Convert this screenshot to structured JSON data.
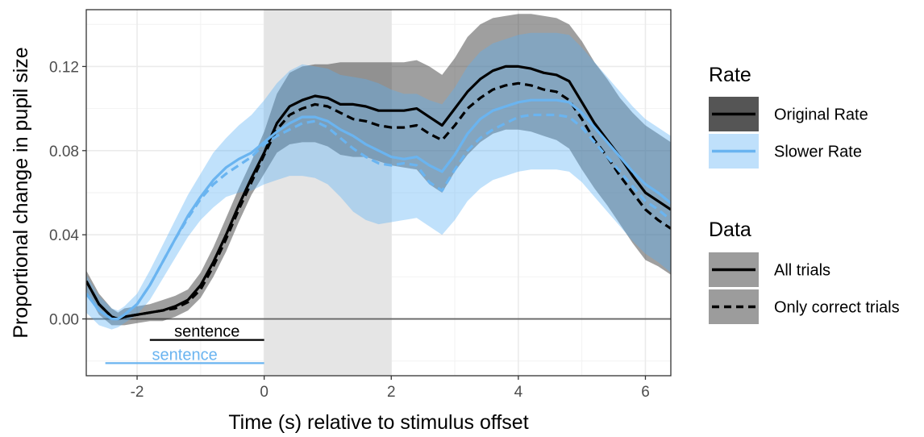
{
  "chart_data": {
    "type": "line",
    "xlabel": "Time (s) relative to stimulus offset",
    "ylabel": "Proportional change in pupil size",
    "xlim": [
      -2.8,
      6.4
    ],
    "ylim": [
      -0.027,
      0.147
    ],
    "x_ticks": [
      -2,
      0,
      2,
      4,
      6
    ],
    "x_tick_labels": [
      "-2",
      "0",
      "2",
      "4",
      "6"
    ],
    "y_ticks": [
      0.0,
      0.04,
      0.08,
      0.12
    ],
    "y_tick_labels": [
      "0.00",
      "0.04",
      "0.08",
      "0.12"
    ],
    "grid": true,
    "shaded_region": {
      "x_start": 0,
      "x_end": 2,
      "color": "#e5e5e5"
    },
    "reference_line": {
      "y": 0,
      "color": "#666666"
    },
    "annotations": [
      {
        "text": "sentence",
        "x_start": -1.8,
        "x_end": 0,
        "y": -0.01,
        "color": "#000000"
      },
      {
        "text": "sentence",
        "x_start": -2.5,
        "x_end": 0,
        "y": -0.021,
        "color": "#6ab4f0"
      }
    ],
    "legend": {
      "position": "right",
      "groups": [
        {
          "title": "Rate",
          "entries": [
            {
              "label": "Original Rate",
              "line_color": "#000000",
              "fill_color": "#555555"
            },
            {
              "label": "Slower Rate",
              "line_color": "#6ab4f0",
              "fill_color": "#bfe0fb"
            }
          ]
        },
        {
          "title": "Data",
          "entries": [
            {
              "label": "All trials",
              "dash": "solid"
            },
            {
              "label": "Only correct trials",
              "dash": "dashed"
            }
          ]
        }
      ]
    },
    "x": [
      -2.8,
      -2.6,
      -2.4,
      -2.3,
      -2.2,
      -2.0,
      -1.8,
      -1.6,
      -1.4,
      -1.2,
      -1.0,
      -0.8,
      -0.6,
      -0.4,
      -0.2,
      0.0,
      0.2,
      0.4,
      0.6,
      0.8,
      1.0,
      1.2,
      1.4,
      1.6,
      1.8,
      2.0,
      2.2,
      2.4,
      2.6,
      2.8,
      3.0,
      3.2,
      3.4,
      3.6,
      3.8,
      4.0,
      4.2,
      4.4,
      4.6,
      4.8,
      5.0,
      5.2,
      5.4,
      5.6,
      5.8,
      6.0,
      6.2,
      6.4
    ],
    "series": [
      {
        "name": "Original Rate",
        "data": "All trials",
        "color": "#000000",
        "dash": "solid",
        "values": [
          0.018,
          0.007,
          0.001,
          0.0,
          0.001,
          0.002,
          0.003,
          0.004,
          0.006,
          0.009,
          0.016,
          0.027,
          0.04,
          0.054,
          0.067,
          0.079,
          0.093,
          0.101,
          0.104,
          0.106,
          0.105,
          0.102,
          0.102,
          0.101,
          0.099,
          0.099,
          0.099,
          0.1,
          0.096,
          0.092,
          0.1,
          0.108,
          0.114,
          0.118,
          0.12,
          0.12,
          0.119,
          0.117,
          0.116,
          0.113,
          0.103,
          0.093,
          0.085,
          0.077,
          0.068,
          0.06,
          0.056,
          0.052
        ],
        "lower": [
          0.013,
          0.002,
          -0.003,
          -0.003,
          -0.003,
          -0.002,
          -0.001,
          -0.001,
          0.001,
          0.004,
          0.01,
          0.02,
          0.032,
          0.046,
          0.059,
          0.069,
          0.079,
          0.083,
          0.084,
          0.084,
          0.082,
          0.078,
          0.077,
          0.077,
          0.075,
          0.073,
          0.072,
          0.071,
          0.064,
          0.06,
          0.07,
          0.078,
          0.084,
          0.088,
          0.09,
          0.09,
          0.089,
          0.087,
          0.085,
          0.081,
          0.071,
          0.062,
          0.054,
          0.045,
          0.036,
          0.028,
          0.025,
          0.021
        ],
        "upper": [
          0.023,
          0.012,
          0.005,
          0.003,
          0.005,
          0.006,
          0.007,
          0.009,
          0.011,
          0.014,
          0.022,
          0.034,
          0.048,
          0.062,
          0.075,
          0.089,
          0.107,
          0.117,
          0.12,
          0.121,
          0.121,
          0.122,
          0.122,
          0.122,
          0.122,
          0.122,
          0.122,
          0.123,
          0.12,
          0.116,
          0.124,
          0.134,
          0.14,
          0.143,
          0.144,
          0.145,
          0.145,
          0.144,
          0.143,
          0.14,
          0.132,
          0.122,
          0.114,
          0.105,
          0.098,
          0.092,
          0.088,
          0.084
        ]
      },
      {
        "name": "Original Rate",
        "data": "Only correct trials",
        "color": "#000000",
        "dash": "dashed",
        "values": [
          0.018,
          0.007,
          0.001,
          0.0,
          0.001,
          0.002,
          0.003,
          0.004,
          0.005,
          0.008,
          0.014,
          0.025,
          0.038,
          0.052,
          0.065,
          0.078,
          0.09,
          0.097,
          0.1,
          0.102,
          0.101,
          0.098,
          0.095,
          0.094,
          0.092,
          0.091,
          0.091,
          0.092,
          0.088,
          0.085,
          0.092,
          0.1,
          0.105,
          0.109,
          0.111,
          0.112,
          0.111,
          0.109,
          0.108,
          0.104,
          0.095,
          0.085,
          0.077,
          0.068,
          0.06,
          0.052,
          0.047,
          0.043
        ]
      },
      {
        "name": "Slower Rate",
        "data": "All trials",
        "color": "#6ab4f0",
        "dash": "solid",
        "values": [
          0.012,
          0.004,
          0.0,
          0.0,
          0.002,
          0.007,
          0.016,
          0.027,
          0.038,
          0.049,
          0.058,
          0.066,
          0.072,
          0.076,
          0.079,
          0.084,
          0.089,
          0.093,
          0.096,
          0.096,
          0.094,
          0.09,
          0.087,
          0.083,
          0.08,
          0.077,
          0.076,
          0.077,
          0.073,
          0.07,
          0.078,
          0.088,
          0.095,
          0.099,
          0.101,
          0.103,
          0.104,
          0.104,
          0.104,
          0.103,
          0.098,
          0.091,
          0.084,
          0.077,
          0.07,
          0.064,
          0.06,
          0.055
        ],
        "lower": [
          0.003,
          -0.003,
          -0.005,
          -0.004,
          -0.002,
          0.002,
          0.009,
          0.019,
          0.029,
          0.039,
          0.047,
          0.053,
          0.058,
          0.06,
          0.061,
          0.064,
          0.066,
          0.068,
          0.068,
          0.067,
          0.064,
          0.058,
          0.051,
          0.047,
          0.045,
          0.046,
          0.047,
          0.048,
          0.044,
          0.04,
          0.047,
          0.056,
          0.062,
          0.066,
          0.068,
          0.07,
          0.071,
          0.071,
          0.071,
          0.07,
          0.065,
          0.058,
          0.051,
          0.044,
          0.037,
          0.031,
          0.027,
          0.022
        ],
        "upper": [
          0.021,
          0.011,
          0.005,
          0.004,
          0.006,
          0.012,
          0.023,
          0.035,
          0.047,
          0.059,
          0.069,
          0.079,
          0.086,
          0.092,
          0.097,
          0.104,
          0.112,
          0.118,
          0.121,
          0.12,
          0.119,
          0.116,
          0.115,
          0.114,
          0.112,
          0.109,
          0.107,
          0.107,
          0.104,
          0.102,
          0.11,
          0.12,
          0.127,
          0.131,
          0.133,
          0.135,
          0.136,
          0.136,
          0.136,
          0.135,
          0.129,
          0.122,
          0.115,
          0.108,
          0.101,
          0.095,
          0.091,
          0.087
        ]
      },
      {
        "name": "Slower Rate",
        "data": "Only correct trials",
        "color": "#6ab4f0",
        "dash": "dashed",
        "values": [
          0.012,
          0.004,
          0.0,
          0.0,
          0.002,
          0.007,
          0.016,
          0.027,
          0.038,
          0.048,
          0.057,
          0.064,
          0.069,
          0.073,
          0.077,
          0.083,
          0.087,
          0.09,
          0.093,
          0.094,
          0.091,
          0.086,
          0.081,
          0.077,
          0.074,
          0.073,
          0.074,
          0.073,
          0.065,
          0.061,
          0.071,
          0.08,
          0.086,
          0.09,
          0.093,
          0.096,
          0.097,
          0.097,
          0.097,
          0.096,
          0.091,
          0.084,
          0.077,
          0.07,
          0.063,
          0.056,
          0.052,
          0.047
        ]
      }
    ]
  }
}
